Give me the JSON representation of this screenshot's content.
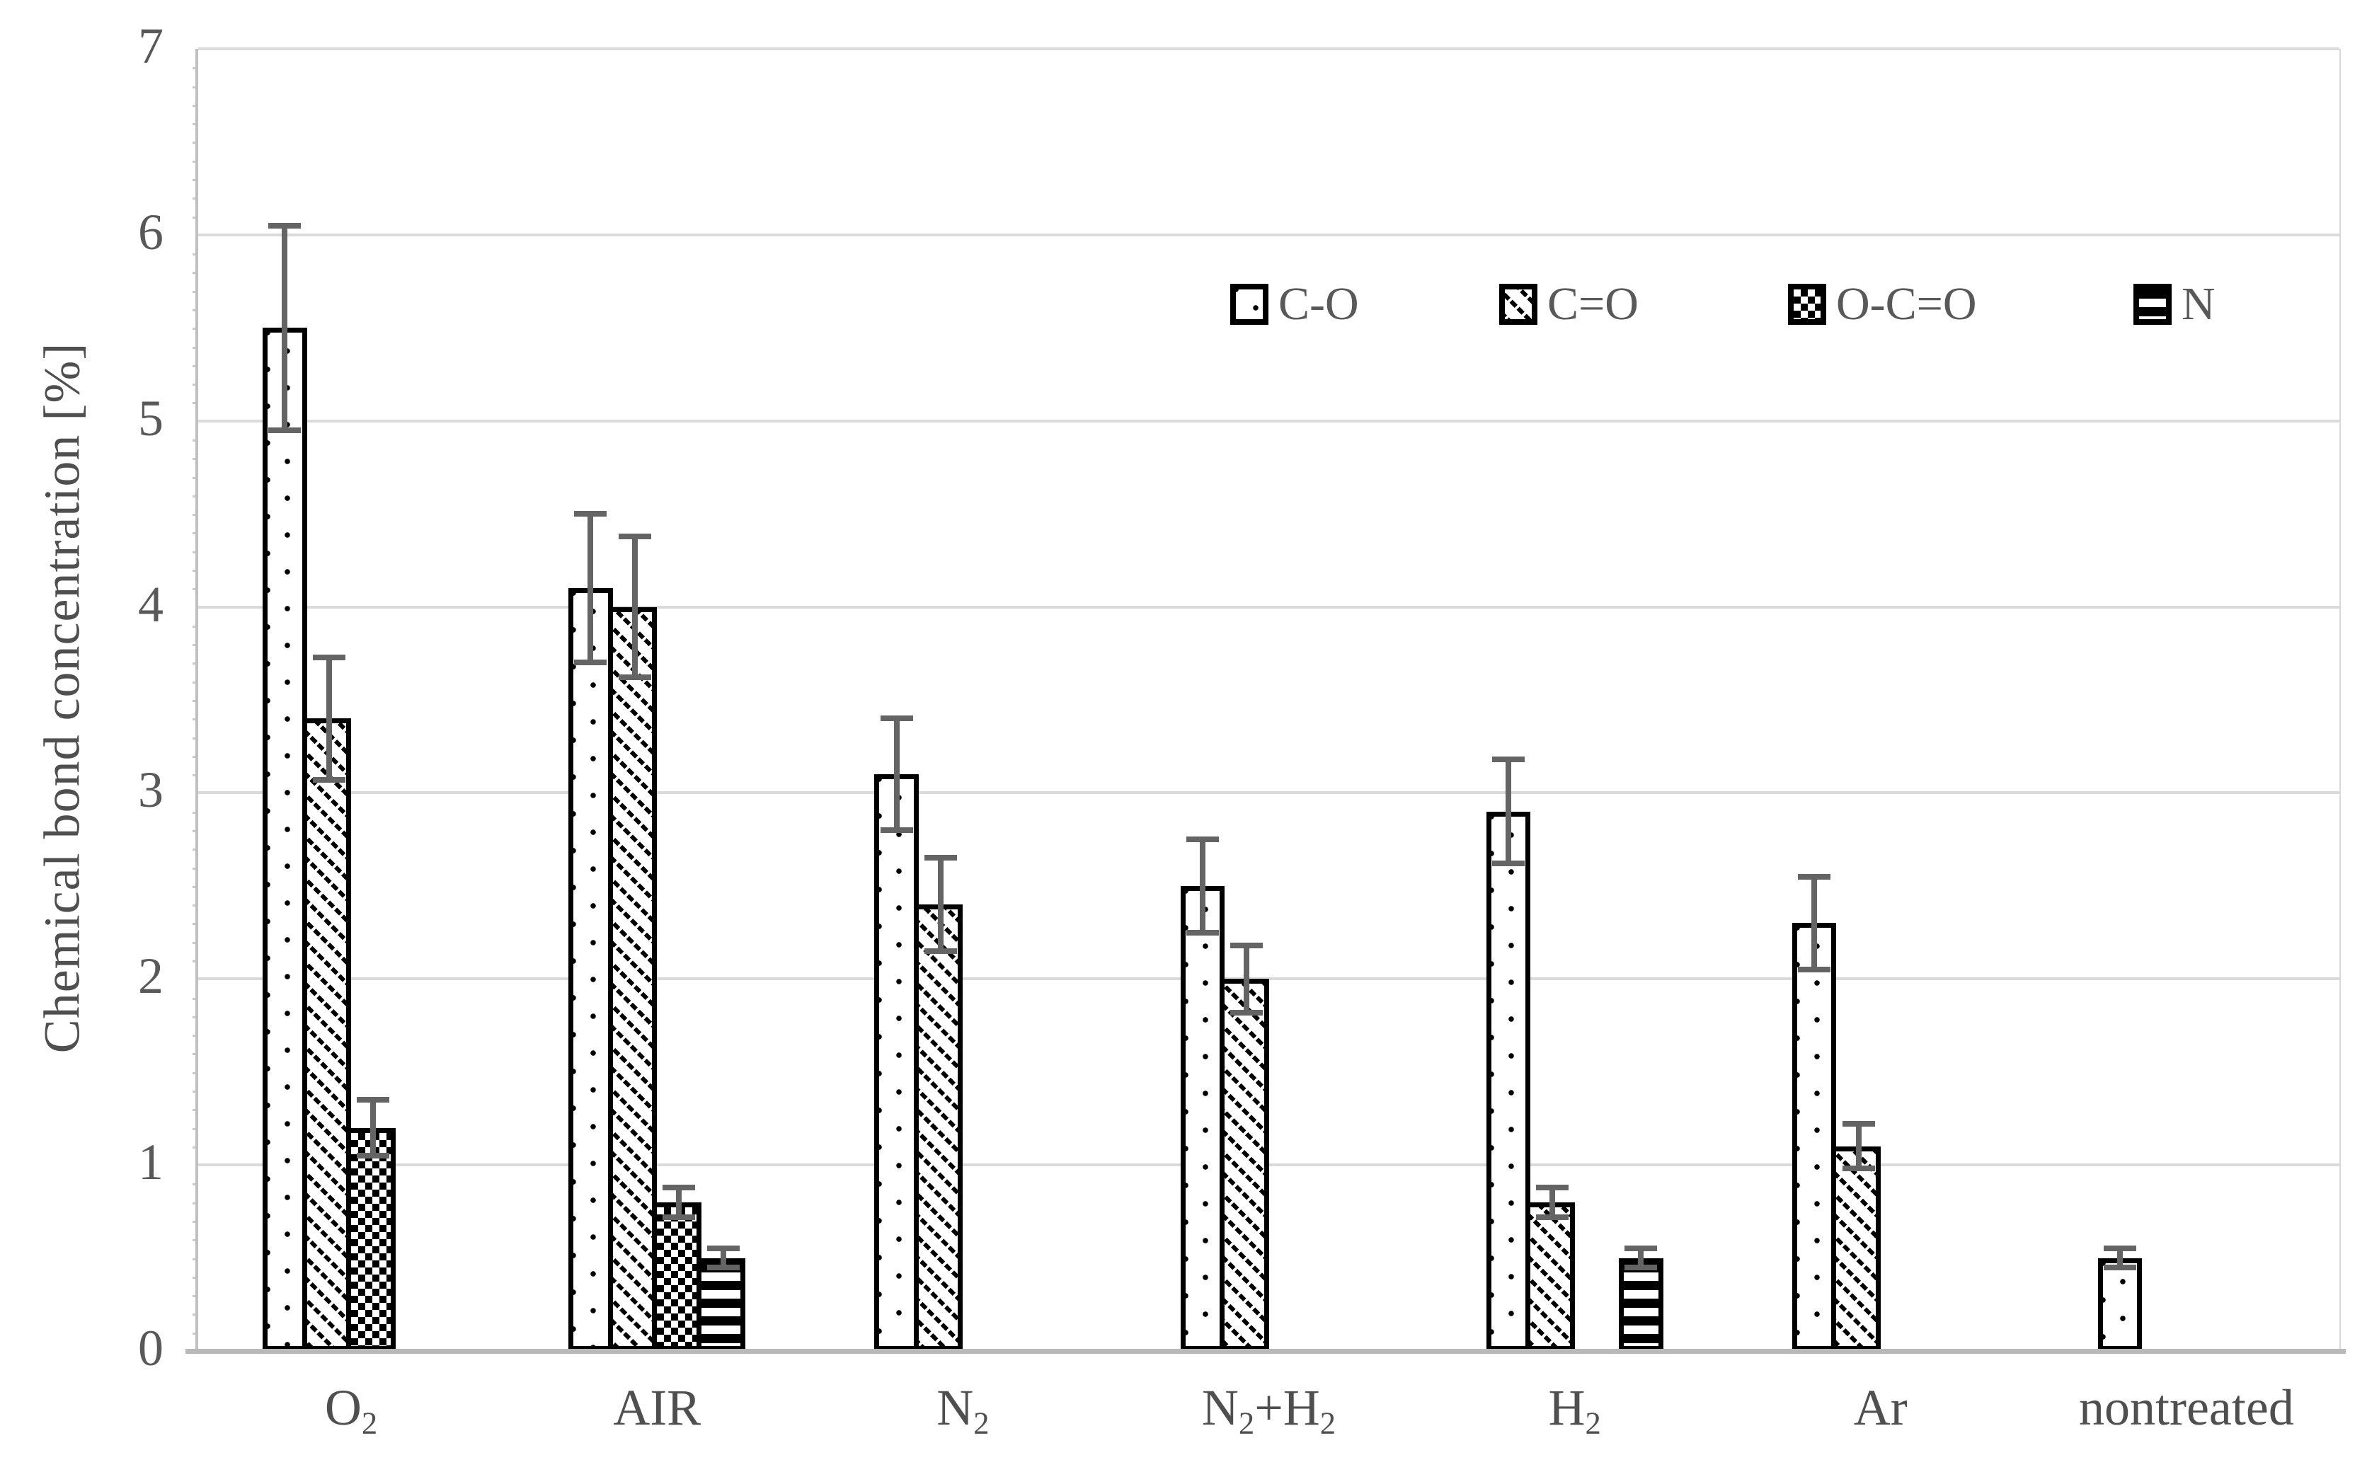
{
  "chart_data": {
    "type": "bar",
    "title": "",
    "xlabel": "",
    "ylabel": "Chemical bond concentration [%]",
    "ylim": [
      0,
      7
    ],
    "yticks": [
      "0",
      "1",
      "2",
      "3",
      "4",
      "5",
      "6",
      "7"
    ],
    "grid": true,
    "legend_position": "top-right-inside",
    "categories": [
      "O2",
      "AIR",
      "N2",
      "N2+H2",
      "H2",
      "Ar",
      "nontreated"
    ],
    "categories_rich": [
      {
        "parts": [
          {
            "text": "O"
          },
          {
            "text": "2",
            "subscript": true
          }
        ]
      },
      {
        "parts": [
          {
            "text": "AIR"
          }
        ]
      },
      {
        "parts": [
          {
            "text": "N"
          },
          {
            "text": "2",
            "subscript": true
          }
        ]
      },
      {
        "parts": [
          {
            "text": "N"
          },
          {
            "text": "2",
            "subscript": true
          },
          {
            "text": "+H"
          },
          {
            "text": "2",
            "subscript": true
          }
        ]
      },
      {
        "parts": [
          {
            "text": "H"
          },
          {
            "text": "2",
            "subscript": true
          }
        ]
      },
      {
        "parts": [
          {
            "text": "Ar"
          }
        ]
      },
      {
        "parts": [
          {
            "text": "nontreated"
          }
        ]
      }
    ],
    "series": [
      {
        "name": "C-O",
        "pattern": "sparse-dots",
        "values": [
          5.5,
          4.1,
          3.1,
          2.5,
          2.9,
          2.3,
          0.5
        ],
        "errors": [
          0.55,
          0.4,
          0.3,
          0.25,
          0.28,
          0.25,
          0.05
        ]
      },
      {
        "name": "C=O",
        "pattern": "diagonal-dashes",
        "values": [
          3.4,
          4.0,
          2.4,
          2.0,
          0.8,
          1.1,
          0
        ],
        "errors": [
          0.33,
          0.38,
          0.25,
          0.18,
          0.08,
          0.12,
          0
        ]
      },
      {
        "name": "O-C=O",
        "pattern": "checkerboard",
        "values": [
          1.2,
          0.8,
          0,
          0,
          0,
          0,
          0
        ],
        "errors": [
          0.15,
          0.08,
          0,
          0,
          0,
          0,
          0
        ]
      },
      {
        "name": "N",
        "pattern": "horizontal-stripes",
        "values": [
          0,
          0.5,
          0,
          0,
          0.5,
          0,
          0
        ],
        "errors": [
          0,
          0.05,
          0,
          0,
          0.05,
          0,
          0
        ]
      }
    ],
    "colors": {
      "bar_fill": "#ffffff",
      "bar_border": "#000000",
      "pattern_ink": "#000000",
      "error_bar": "#646464",
      "gridline": "#dadada",
      "axis_line": "#bfbfbf",
      "text": "#595959"
    }
  },
  "legend": {
    "items": [
      {
        "label": "C-O",
        "pattern": "sparse-dots"
      },
      {
        "label": "C=O",
        "pattern": "diagonal-dashes"
      },
      {
        "label": "O-C=O",
        "pattern": "checkerboard"
      },
      {
        "label": "N",
        "pattern": "horizontal-stripes"
      }
    ]
  }
}
